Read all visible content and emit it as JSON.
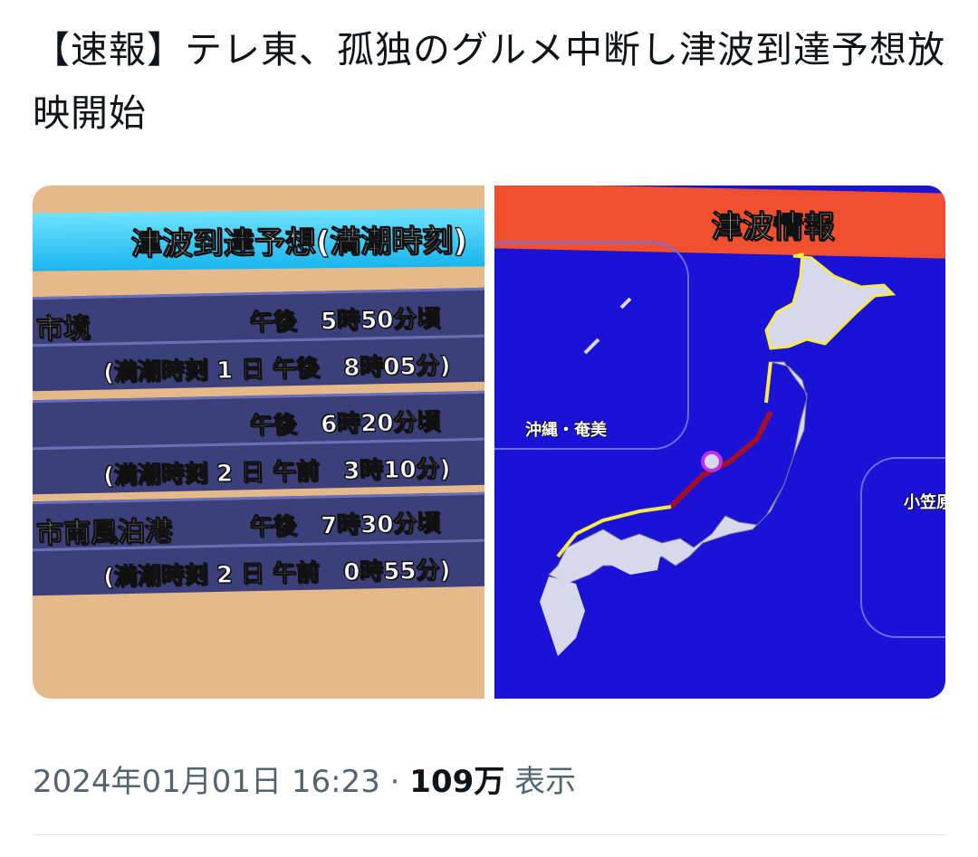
{
  "tweet": {
    "text": "【速報】テレ東、孤独のグルメ中断し津波到達予想放映開始",
    "date": "2024年01月01日 16:23",
    "separator": "·",
    "views_count": "109万",
    "views_label": "表示"
  },
  "left_photo": {
    "header": "津波到達予想(満潮時刻)",
    "rows": [
      {
        "place": "市境",
        "time": "午後　5時50分頃"
      },
      {
        "place": "",
        "time": "(満潮時刻 1 日 午後　8時05分)"
      },
      {
        "place": "",
        "time": "午後　6時20分頃"
      },
      {
        "place": "",
        "time": "(満潮時刻 2 日 午前　3時10分)"
      },
      {
        "place": "市南風泊港",
        "time": "午後　7時30分頃"
      },
      {
        "place": "",
        "time": "(満潮時刻 2 日 午前　0時55分)"
      }
    ]
  },
  "right_photo": {
    "header": "津波情報",
    "inset_label": "沖縄・奄美",
    "right_label": "小笠原",
    "colors": {
      "background": "#1a12d6",
      "header": "#f0502e",
      "advisory": "#f5ea4a",
      "warning": "#a0102a",
      "major": "#c030e0",
      "land": "#d8d8ec"
    }
  }
}
